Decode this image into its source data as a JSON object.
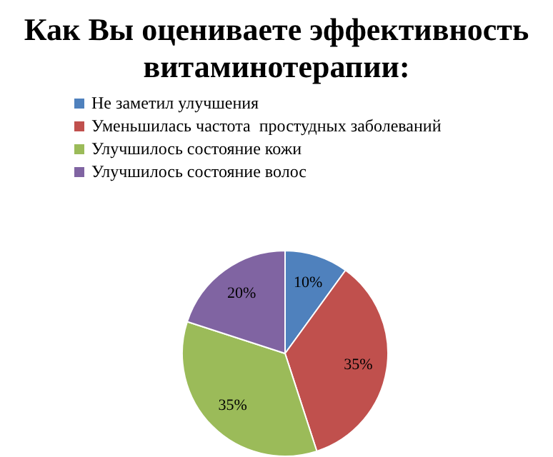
{
  "chart_data": {
    "type": "pie",
    "title": "Как Вы оцениваете эффективность витаминотерапии:",
    "categories": [
      "Не заметил улучшения",
      "Уменьшилась частота  простудных заболеваний",
      "Улучшилось состояние кожи",
      "Улучшилось состояние волос"
    ],
    "values": [
      10,
      35,
      35,
      20
    ],
    "value_labels": [
      "10%",
      "35%",
      "35%",
      "20%"
    ],
    "colors": [
      "#4f81bd",
      "#c0504d",
      "#9bbb59",
      "#8064a2"
    ],
    "legend": "top"
  }
}
